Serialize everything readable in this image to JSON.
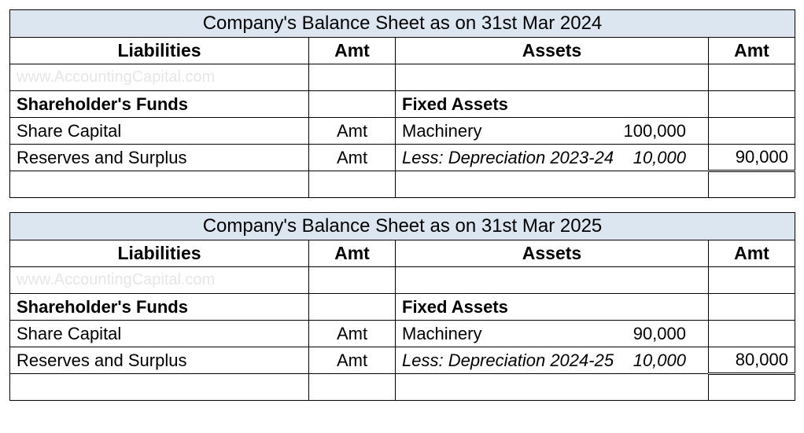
{
  "sheets": [
    {
      "title": "Company's Balance Sheet as on 31st Mar 2024",
      "headers": {
        "liabilities": "Liabilities",
        "amt1": "Amt",
        "assets": "Assets",
        "amt2": "Amt"
      },
      "watermark": "www.AccountingCapital.com",
      "liab_section": "Shareholder's Funds",
      "assets_section": "Fixed Assets",
      "rows": [
        {
          "liab": "Share Capital",
          "amt1": "Amt",
          "asset_label": "Machinery",
          "asset_val": "100,000",
          "amt2": "",
          "italic": false
        },
        {
          "liab": "Reserves and Surplus",
          "amt1": "Amt",
          "asset_label": "Less: Depreciation 2023-24",
          "asset_val": "10,000",
          "amt2": "90,000",
          "italic": true
        }
      ]
    },
    {
      "title": "Company's Balance Sheet as on 31st Mar 2025",
      "headers": {
        "liabilities": "Liabilities",
        "amt1": "Amt",
        "assets": "Assets",
        "amt2": "Amt"
      },
      "watermark": "www.AccountingCapital.com",
      "liab_section": "Shareholder's Funds",
      "assets_section": "Fixed Assets",
      "rows": [
        {
          "liab": "Share Capital",
          "amt1": "Amt",
          "asset_label": "Machinery",
          "asset_val": "90,000",
          "amt2": "",
          "italic": false
        },
        {
          "liab": "Reserves and Surplus",
          "amt1": "Amt",
          "asset_label": "Less: Depreciation 2024-25",
          "asset_val": "10,000",
          "amt2": "80,000",
          "italic": true
        }
      ]
    }
  ],
  "colors": {
    "title_bg": "#dce6f1",
    "border": "#000000",
    "watermark": "#e6e6e6",
    "background": "#ffffff"
  }
}
